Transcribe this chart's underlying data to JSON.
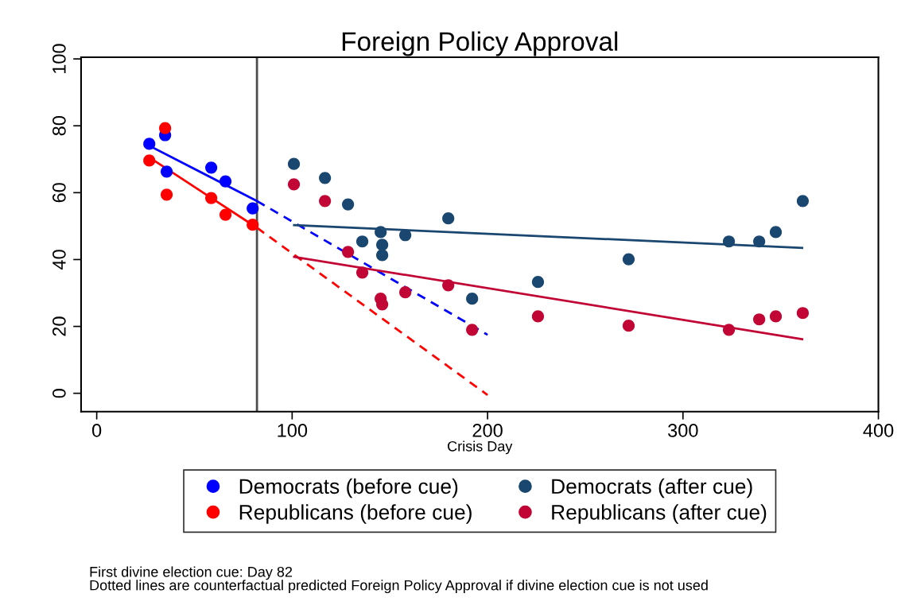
{
  "chart_data": {
    "type": "scatter",
    "title": "Foreign Policy Approval",
    "xlabel": "Crisis Day",
    "annotations": [
      "First divine election cue: Day 82",
      "Dotted lines are counterfactual predicted Foreign Policy Approval if divine election cue is not used"
    ],
    "xlim": [
      -8,
      400
    ],
    "ylim": [
      -5.5,
      100.5
    ],
    "xticks": [
      0,
      100,
      200,
      300,
      400
    ],
    "yticks": [
      0,
      20,
      40,
      60,
      80,
      100
    ],
    "grid": false,
    "legend": "bottom",
    "marker": "circle",
    "ref_lines": [
      {
        "axis": "x",
        "value": 82,
        "label": null,
        "color": "#4d4d4d",
        "line_style": "solid"
      }
    ],
    "series": [
      {
        "name": "Democrats (before cue)",
        "color": "#0000ff",
        "x": [
          26.9,
          35,
          35.8,
          58.6,
          65.9,
          79.8
        ],
        "values": [
          74.6,
          77.2,
          66.3,
          67.5,
          63.4,
          55.3
        ]
      },
      {
        "name": "Republicans (before cue)",
        "color": "#ff0000",
        "x": [
          26.9,
          35,
          35.8,
          58.6,
          65.9,
          79.8
        ],
        "values": [
          69.6,
          79.3,
          59.4,
          58.4,
          53.4,
          50.4
        ]
      },
      {
        "name": "Democrats (after cue)",
        "color": "#1a476f",
        "x": [
          100.9,
          116.8,
          128.6,
          135.9,
          145.3,
          146.1,
          146.1,
          157.9,
          179.9,
          192.1,
          225.8,
          272.2,
          323.5,
          339,
          347.5,
          361.3
        ],
        "values": [
          68.6,
          64.4,
          56.5,
          45.4,
          48.2,
          44.4,
          41.3,
          47.3,
          52.3,
          28.3,
          33.3,
          40.1,
          45.4,
          45.4,
          48.2,
          57.5
        ]
      },
      {
        "name": "Republicans (after cue)",
        "color": "#c10534",
        "x": [
          100.9,
          116.8,
          128.6,
          135.9,
          145.3,
          146.1,
          157.9,
          179.9,
          192.1,
          225.8,
          272.2,
          323.5,
          339,
          347.5,
          361.3
        ],
        "values": [
          62.5,
          57.5,
          42.3,
          36.1,
          28.3,
          26.6,
          30.2,
          32.3,
          19,
          23,
          20.2,
          19,
          22.1,
          23,
          24
        ]
      },
      {
        "type": "line",
        "marker": "none",
        "color": "#0000ff",
        "line_style": "solid",
        "x": [
          27,
          82
        ],
        "values": [
          74,
          57.5
        ]
      },
      {
        "type": "line",
        "marker": "none",
        "color": "#0000ff",
        "line_style": "dashed",
        "x": [
          82,
          200
        ],
        "values": [
          57.5,
          17.5
        ]
      },
      {
        "type": "line",
        "marker": "none",
        "color": "#ff0000",
        "line_style": "solid",
        "x": [
          27,
          82
        ],
        "values": [
          70.5,
          49.5
        ]
      },
      {
        "type": "line",
        "marker": "none",
        "color": "#ff0000",
        "line_style": "dashed",
        "x": [
          82,
          200
        ],
        "values": [
          49.5,
          -0.5
        ]
      },
      {
        "type": "line",
        "marker": "none",
        "color": "#1a476f",
        "line_style": "solid",
        "x": [
          101,
          361
        ],
        "values": [
          50.3,
          43.5
        ]
      },
      {
        "type": "line",
        "marker": "none",
        "color": "#c10534",
        "line_style": "solid",
        "x": [
          101,
          361
        ],
        "values": [
          40.8,
          16.2
        ]
      }
    ]
  }
}
